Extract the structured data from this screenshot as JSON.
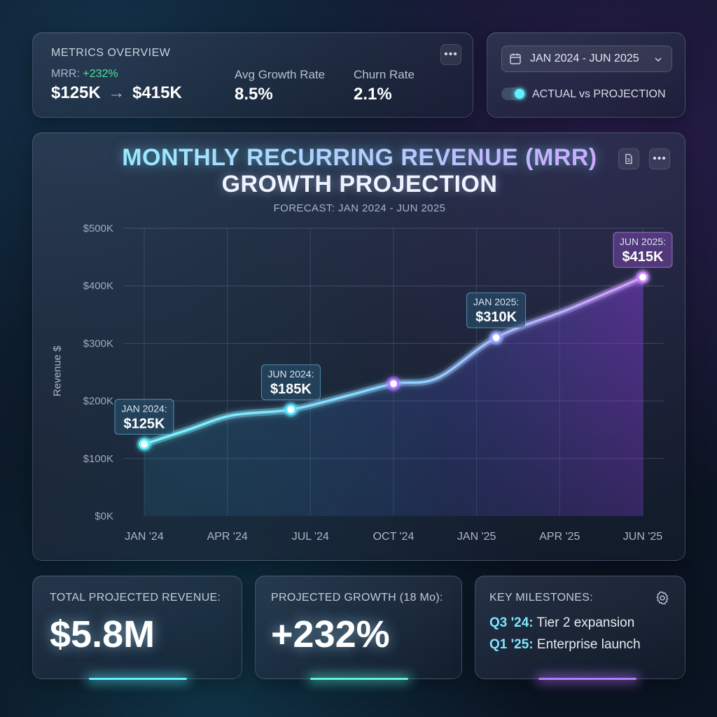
{
  "metrics": {
    "title": "METRICS OVERVIEW",
    "mrr_label": "MRR:",
    "mrr_change": "+232%",
    "mrr_from": "$125K",
    "mrr_arrow": "→",
    "mrr_to": "$415K",
    "growth_label": "Avg Growth Rate",
    "growth_value": "8.5%",
    "churn_label": "Churn Rate",
    "churn_value": "2.1%",
    "menu_icon": "more-horizontal-icon"
  },
  "controls": {
    "date_range": "JAN 2024 - JUN 2025",
    "calendar_icon": "calendar-icon",
    "chevron_icon": "chevron-down-icon",
    "toggle_label": "ACTUAL vs PROJECTION",
    "toggle_on": true
  },
  "chart": {
    "title_line1": "MONTHLY RECURRING REVENUE (MRR)",
    "title_line2": "GROWTH PROJECTION",
    "subtitle": "FORECAST: JAN 2024 - JUN 2025",
    "ylabel": "Revenue $"
  },
  "chart_data": {
    "type": "area",
    "title": "MONTHLY RECURRING REVENUE (MRR) GROWTH PROJECTION",
    "subtitle": "FORECAST: JAN 2024 - JUN 2025",
    "xlabel": "",
    "ylabel": "Revenue $",
    "x_ticks": [
      "JAN '24",
      "APR '24",
      "JUL '24",
      "OCT '24",
      "JAN '25",
      "APR '25",
      "JUN '25"
    ],
    "y_ticks": [
      "$0K",
      "$100K",
      "$200K",
      "$300K",
      "$400K",
      "$500K"
    ],
    "ylim": [
      0,
      500
    ],
    "xlim": [
      0,
      17
    ],
    "grid": true,
    "series": [
      {
        "points": [
          {
            "x": 0,
            "y": 125
          },
          {
            "x": 1.5,
            "y": 150
          },
          {
            "x": 3,
            "y": 175
          },
          {
            "x": 5,
            "y": 185
          },
          {
            "x": 7,
            "y": 210
          },
          {
            "x": 8.5,
            "y": 230
          },
          {
            "x": 10,
            "y": 240
          },
          {
            "x": 12,
            "y": 310
          },
          {
            "x": 14.5,
            "y": 360
          },
          {
            "x": 17,
            "y": 415
          }
        ]
      }
    ],
    "markers": [
      {
        "x": 0,
        "y": 125,
        "label_line1": "JAN 2024:",
        "label_line2": "$125K",
        "color": "#5ef2ff"
      },
      {
        "x": 5,
        "y": 185,
        "label_line1": "JUN 2024:",
        "label_line2": "$185K",
        "color": "#5ee6ff"
      },
      {
        "x": 8.5,
        "y": 230,
        "label_line1": "",
        "label_line2": "",
        "color": "#b27bff"
      },
      {
        "x": 12,
        "y": 310,
        "label_line1": "JAN 2025:",
        "label_line2": "$310K",
        "color": "#9aa8ff"
      },
      {
        "x": 17,
        "y": 415,
        "label_line1": "JUN 2025:",
        "label_line2": "$415K",
        "color": "#c98bff"
      }
    ]
  },
  "stats": {
    "total_label": "TOTAL PROJECTED REVENUE:",
    "total_value": "$5.8M",
    "growth_label": "PROJECTED GROWTH (18 Mo):",
    "growth_value": "+232%",
    "milestones_label": "KEY MILESTONES:",
    "milestones": [
      {
        "quarter": "Q3 '24:",
        "text": "Tier 2 expansion"
      },
      {
        "quarter": "Q1 '25:",
        "text": "Enterprise launch"
      }
    ],
    "settings_icon": "gear-icon"
  },
  "colors": {
    "accent_cyan": "#5ef2ff",
    "accent_purple": "#b57bff",
    "positive_green": "#4ee39a"
  }
}
